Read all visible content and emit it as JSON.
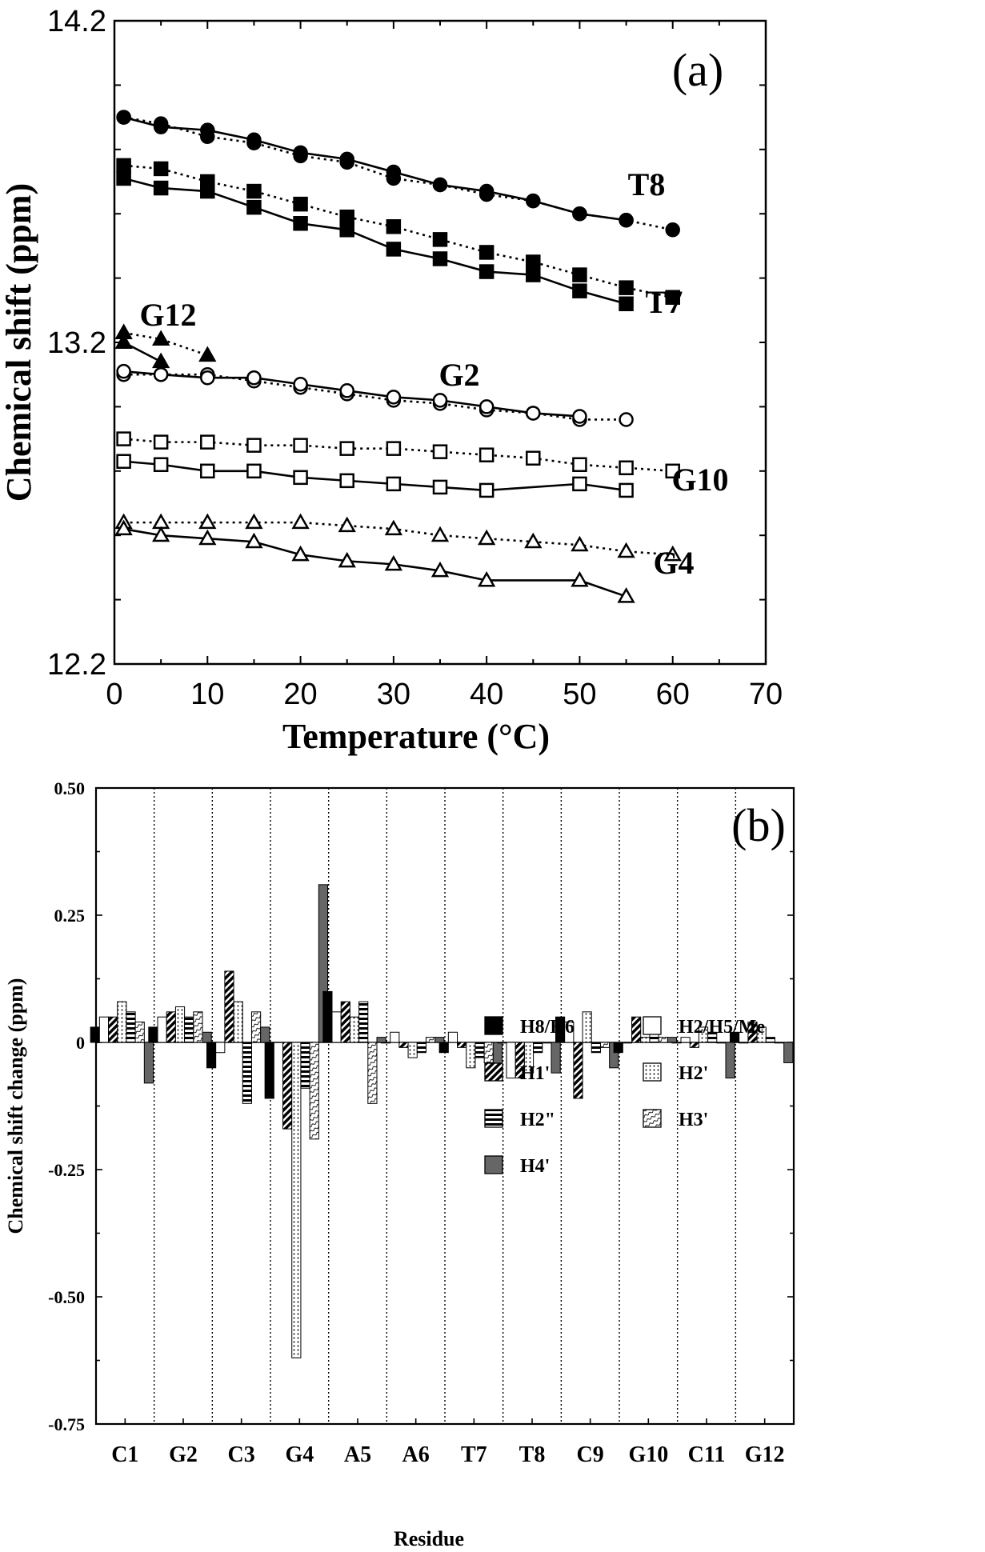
{
  "chart_data": [
    {
      "type": "line",
      "panel_label": "(a)",
      "xlabel": "Temperature (°C)",
      "ylabel": "Chemical shift (ppm)",
      "xlim": [
        0,
        70
      ],
      "ylim": [
        12.2,
        14.2
      ],
      "x_ticks": [
        "0",
        "10",
        "20",
        "30",
        "40",
        "50",
        "60",
        "70"
      ],
      "y_ticks": [
        "12.2",
        "13.2",
        "14.2"
      ],
      "series": [
        {
          "name": "T8",
          "label": "T8",
          "marker": "circle-filled",
          "style": "dotted",
          "x": [
            1,
            5,
            10,
            15,
            20,
            25,
            30,
            35,
            40,
            45,
            50,
            55,
            60
          ],
          "y": [
            13.9,
            13.88,
            13.84,
            13.82,
            13.78,
            13.76,
            13.71,
            13.69,
            13.66,
            13.64,
            13.6,
            13.58,
            13.55
          ]
        },
        {
          "marker": "circle-filled",
          "style": "solid",
          "x": [
            1,
            5,
            10,
            15,
            20,
            25,
            30,
            35,
            40,
            45,
            50,
            55
          ],
          "y": [
            13.9,
            13.87,
            13.86,
            13.83,
            13.79,
            13.77,
            13.73,
            13.69,
            13.67,
            13.64,
            13.6,
            13.58
          ]
        },
        {
          "name": "T7",
          "label": "T7",
          "marker": "square-filled",
          "style": "dotted",
          "x": [
            1,
            5,
            10,
            15,
            20,
            25,
            30,
            35,
            40,
            45,
            50,
            55,
            60
          ],
          "y": [
            13.75,
            13.74,
            13.7,
            13.67,
            13.63,
            13.59,
            13.56,
            13.52,
            13.48,
            13.45,
            13.41,
            13.37,
            13.34
          ]
        },
        {
          "marker": "square-filled",
          "style": "solid",
          "x": [
            1,
            5,
            10,
            15,
            20,
            25,
            30,
            35,
            40,
            45,
            50,
            55
          ],
          "y": [
            13.71,
            13.68,
            13.67,
            13.62,
            13.57,
            13.55,
            13.49,
            13.46,
            13.42,
            13.41,
            13.36,
            13.32
          ]
        },
        {
          "name": "G12",
          "label": "G12",
          "marker": "triangle-filled",
          "style": "dotted",
          "x": [
            1,
            5,
            10
          ],
          "y": [
            13.23,
            13.21,
            13.16
          ]
        },
        {
          "marker": "triangle-filled",
          "style": "solid",
          "x": [
            1,
            5
          ],
          "y": [
            13.2,
            13.14
          ]
        },
        {
          "name": "G2",
          "label": "G2",
          "marker": "circle-open",
          "style": "dotted",
          "x": [
            1,
            5,
            10,
            15,
            20,
            25,
            30,
            35,
            40,
            45,
            50,
            55
          ],
          "y": [
            13.1,
            13.1,
            13.1,
            13.08,
            13.06,
            13.04,
            13.02,
            13.01,
            12.99,
            12.98,
            12.96,
            12.96
          ]
        },
        {
          "marker": "circle-open",
          "style": "solid",
          "x": [
            1,
            5,
            10,
            15,
            20,
            25,
            30,
            35,
            40,
            45,
            50
          ],
          "y": [
            13.11,
            13.1,
            13.09,
            13.09,
            13.07,
            13.05,
            13.03,
            13.02,
            13.0,
            12.98,
            12.97
          ]
        },
        {
          "name": "G10",
          "label": "G10",
          "marker": "square-open",
          "style": "dotted",
          "x": [
            1,
            5,
            10,
            15,
            20,
            25,
            30,
            35,
            40,
            45,
            50,
            55,
            60
          ],
          "y": [
            12.9,
            12.89,
            12.89,
            12.88,
            12.88,
            12.87,
            12.87,
            12.86,
            12.85,
            12.84,
            12.82,
            12.81,
            12.8
          ]
        },
        {
          "marker": "square-open",
          "style": "solid",
          "x": [
            1,
            5,
            10,
            15,
            20,
            25,
            30,
            35,
            40,
            50,
            55
          ],
          "y": [
            12.83,
            12.82,
            12.8,
            12.8,
            12.78,
            12.77,
            12.76,
            12.75,
            12.74,
            12.76,
            12.74
          ]
        },
        {
          "name": "G4",
          "label": "G4",
          "marker": "triangle-open",
          "style": "dotted",
          "x": [
            1,
            5,
            10,
            15,
            20,
            25,
            30,
            35,
            40,
            45,
            50,
            55,
            60
          ],
          "y": [
            12.64,
            12.64,
            12.64,
            12.64,
            12.64,
            12.63,
            12.62,
            12.6,
            12.59,
            12.58,
            12.57,
            12.55,
            12.54
          ]
        },
        {
          "marker": "triangle-open",
          "style": "solid",
          "x": [
            1,
            5,
            10,
            15,
            20,
            25,
            30,
            35,
            40,
            50,
            55
          ],
          "y": [
            12.62,
            12.6,
            12.59,
            12.58,
            12.54,
            12.52,
            12.51,
            12.49,
            12.46,
            12.46,
            12.41
          ]
        }
      ]
    },
    {
      "type": "bar",
      "panel_label": "(b)",
      "xlabel": "Residue",
      "ylabel": "Chemical shift change (ppm)",
      "ylim": [
        -0.75,
        0.5
      ],
      "y_ticks": [
        "0.50",
        "0.25",
        "0",
        "-0.25",
        "-0.50",
        "-0.75"
      ],
      "categories": [
        "C1",
        "G2",
        "C3",
        "G4",
        "A5",
        "A6",
        "T7",
        "T8",
        "C9",
        "G10",
        "C11",
        "G12"
      ],
      "legend": [
        {
          "key": "h8h6",
          "label": "H8/H6"
        },
        {
          "key": "h2h5me",
          "label": "H2/H5/Me"
        },
        {
          "key": "h1p",
          "label": "H1'"
        },
        {
          "key": "h2p",
          "label": "H2'"
        },
        {
          "key": "h2pp",
          "label": "H2\""
        },
        {
          "key": "h3p",
          "label": "H3'"
        },
        {
          "key": "h4p",
          "label": "H4'"
        }
      ],
      "series": [
        {
          "name": "H8/H6",
          "key": "h8h6",
          "values": [
            0.03,
            0.03,
            -0.05,
            -0.11,
            0.1,
            0.0,
            -0.02,
            0.0,
            0.05,
            -0.02,
            0.0,
            0.02
          ]
        },
        {
          "name": "H2/H5/Me",
          "key": "h2h5me",
          "values": [
            0.05,
            0.05,
            -0.02,
            null,
            0.06,
            0.02,
            0.02,
            -0.07,
            0.04,
            0.0,
            0.01,
            0.0
          ]
        },
        {
          "name": "H1'",
          "key": "h1p",
          "values": [
            0.05,
            0.06,
            0.14,
            -0.17,
            0.08,
            -0.01,
            -0.01,
            -0.07,
            -0.11,
            0.05,
            -0.01,
            0.04
          ]
        },
        {
          "name": "H2'",
          "key": "h2p",
          "values": [
            0.08,
            0.07,
            0.08,
            -0.62,
            0.05,
            -0.03,
            -0.05,
            -0.06,
            0.06,
            0.01,
            0.03,
            0.03
          ]
        },
        {
          "name": "H2\"",
          "key": "h2pp",
          "values": [
            0.06,
            0.05,
            -0.12,
            -0.09,
            0.08,
            -0.02,
            -0.03,
            -0.02,
            -0.02,
            0.02,
            0.02,
            0.01
          ]
        },
        {
          "name": "H3'",
          "key": "h3p",
          "values": [
            0.04,
            0.06,
            0.06,
            -0.19,
            -0.12,
            0.01,
            -0.04,
            0.0,
            -0.01,
            0.01,
            0.0,
            0.0
          ]
        },
        {
          "name": "H4'",
          "key": "h4p",
          "values": [
            -0.08,
            0.02,
            0.03,
            0.31,
            0.01,
            0.01,
            -0.05,
            -0.06,
            -0.05,
            0.01,
            -0.07,
            -0.04
          ]
        }
      ]
    }
  ]
}
